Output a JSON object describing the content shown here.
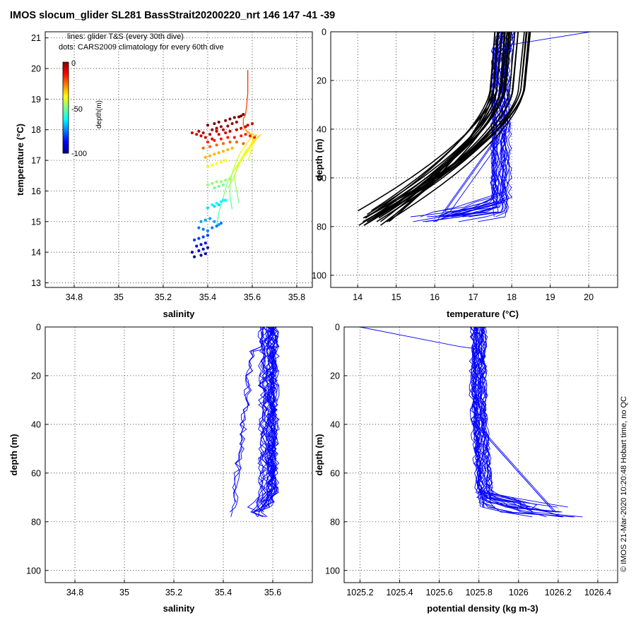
{
  "page": {
    "title": "IMOS slocum_glider SL281 BassStrait20200220_nrt 146  147  -41  -39",
    "side_note": "© IMOS 21-Mar-2020 10:20:48 Hobart time, no QC"
  },
  "chart_data": [
    {
      "id": "ts",
      "type": "scatter",
      "xlabel": "salinity",
      "ylabel": "temperature (°C)",
      "xlim": [
        34.67,
        35.87
      ],
      "ylim": [
        12.85,
        21.2
      ],
      "xticks": [
        "34.8",
        "35",
        "35.2",
        "35.4",
        "35.6",
        "35.8"
      ],
      "yticks": [
        "13",
        "14",
        "15",
        "16",
        "17",
        "18",
        "19",
        "20",
        "21"
      ],
      "grid": true,
      "legend_lines": [
        "lines: glider T&S (every 30th dive)",
        "dots: CARS2009 climatology for every 60th dive"
      ],
      "colorbar": {
        "label": "depth(m)",
        "ticks": [
          "0",
          "-50",
          "-100"
        ],
        "range": [
          -100,
          0
        ]
      },
      "series": [
        {
          "kind": "line",
          "x": [
            35.58,
            35.58,
            35.58,
            35.575,
            35.57,
            35.56,
            35.56,
            35.57,
            35.58,
            35.6,
            35.62
          ],
          "y": [
            19.95,
            19.6,
            19.2,
            18.8,
            18.5,
            18.35,
            18.15,
            18.0,
            17.9,
            17.85,
            17.8
          ],
          "depth": [
            0,
            2,
            4,
            6,
            8,
            10,
            12,
            16,
            20,
            24,
            28
          ]
        },
        {
          "kind": "line",
          "x": [
            35.6,
            35.59,
            35.57,
            35.55,
            35.53,
            35.51,
            35.5,
            35.5,
            35.51
          ],
          "y": [
            17.9,
            17.7,
            17.5,
            17.3,
            17.0,
            16.6,
            16.2,
            15.8,
            15.4
          ],
          "depth": [
            30,
            34,
            38,
            42,
            46,
            52,
            58,
            64,
            70
          ]
        },
        {
          "kind": "line",
          "x": [
            35.62,
            35.6,
            35.58,
            35.55,
            35.52,
            35.49,
            35.47,
            35.45,
            35.44
          ],
          "y": [
            17.85,
            17.6,
            17.35,
            17.05,
            16.7,
            16.3,
            15.8,
            15.3,
            14.85
          ],
          "depth": [
            30,
            35,
            40,
            45,
            50,
            56,
            62,
            68,
            74
          ]
        },
        {
          "kind": "line",
          "x": [
            35.63,
            35.6,
            35.57,
            35.55,
            35.53,
            35.52,
            35.53,
            35.54
          ],
          "y": [
            17.8,
            17.55,
            17.3,
            17.05,
            16.75,
            16.4,
            16.0,
            15.6
          ],
          "depth": [
            30,
            34,
            38,
            42,
            46,
            52,
            58,
            64
          ]
        },
        {
          "kind": "line",
          "x": [
            35.61,
            35.59,
            35.56,
            35.54,
            35.52,
            35.5,
            35.49
          ],
          "y": [
            17.75,
            17.45,
            17.15,
            16.85,
            16.5,
            16.2,
            16.1
          ],
          "depth": [
            32,
            36,
            40,
            44,
            50,
            56,
            60
          ]
        },
        {
          "kind": "line",
          "x": [
            35.56,
            35.57,
            35.59,
            35.6,
            35.6,
            35.6,
            35.59,
            35.58
          ],
          "y": [
            18.1,
            18.0,
            17.9,
            17.75,
            17.6,
            17.4,
            17.2,
            17.0
          ],
          "depth": [
            20,
            24,
            28,
            32,
            36,
            40,
            44,
            48
          ]
        },
        {
          "kind": "line",
          "x": [
            35.64,
            35.62,
            35.6,
            35.58,
            35.56,
            35.55
          ],
          "y": [
            17.85,
            17.7,
            17.5,
            17.3,
            17.1,
            16.95
          ],
          "depth": [
            30,
            34,
            38,
            42,
            46,
            50
          ]
        },
        {
          "kind": "dots",
          "x": [
            35.4,
            35.43,
            35.45,
            35.48,
            35.5,
            35.52,
            35.54,
            35.55,
            35.56,
            35.42,
            35.44,
            35.46,
            35.49,
            35.51,
            35.53,
            35.36,
            35.38,
            35.41,
            35.44,
            35.47,
            35.33,
            35.35,
            35.37,
            35.39,
            35.42,
            35.45,
            35.48,
            35.5,
            35.53,
            35.55,
            35.57,
            35.58,
            35.6
          ],
          "y": [
            18.15,
            18.2,
            18.25,
            18.3,
            18.35,
            18.4,
            18.42,
            18.45,
            18.5,
            18.0,
            18.05,
            18.1,
            18.12,
            18.2,
            18.25,
            17.95,
            17.9,
            17.85,
            17.95,
            18.0,
            17.9,
            17.85,
            17.8,
            17.75,
            17.7,
            17.85,
            17.9,
            17.95,
            18.0,
            18.05,
            18.1,
            18.15,
            18.2
          ],
          "depth": [
            0,
            0,
            0,
            0,
            0,
            0,
            0,
            0,
            0,
            -3,
            -3,
            -3,
            -3,
            -3,
            -3,
            -6,
            -6,
            -6,
            -6,
            -6,
            -8,
            -8,
            -8,
            -8,
            -8,
            -8,
            -8,
            -8,
            -8,
            -8,
            -8,
            -8,
            -8
          ]
        },
        {
          "kind": "dots",
          "x": [
            35.4,
            35.43,
            35.46,
            35.49,
            35.52,
            35.55,
            35.57,
            35.59,
            35.61,
            35.38,
            35.41,
            35.44,
            35.47,
            35.5,
            35.53,
            35.56
          ],
          "y": [
            17.6,
            17.65,
            17.7,
            17.75,
            17.75,
            17.8,
            17.85,
            17.8,
            17.75,
            17.4,
            17.45,
            17.5,
            17.55,
            17.6,
            17.6,
            17.55
          ],
          "depth": [
            -15,
            -15,
            -15,
            -15,
            -15,
            -15,
            -15,
            -15,
            -15,
            -22,
            -22,
            -22,
            -22,
            -22,
            -22,
            -22
          ]
        },
        {
          "kind": "dots",
          "x": [
            35.39,
            35.41,
            35.43,
            35.45,
            35.47,
            35.49,
            35.51,
            35.4,
            35.42,
            35.44,
            35.46,
            35.48
          ],
          "y": [
            17.1,
            17.15,
            17.2,
            17.25,
            17.3,
            17.35,
            17.4,
            16.8,
            16.85,
            16.9,
            16.95,
            17.0
          ],
          "depth": [
            -30,
            -30,
            -30,
            -30,
            -30,
            -30,
            -30,
            -38,
            -38,
            -38,
            -38,
            -38
          ]
        },
        {
          "kind": "dots",
          "x": [
            35.4,
            35.42,
            35.44,
            35.46,
            35.48,
            35.5,
            35.43,
            35.45,
            35.47
          ],
          "y": [
            16.2,
            16.25,
            16.3,
            16.3,
            16.35,
            16.4,
            16.1,
            16.15,
            16.2
          ],
          "depth": [
            -48,
            -48,
            -48,
            -48,
            -48,
            -48,
            -52,
            -52,
            -52
          ]
        },
        {
          "kind": "dots",
          "x": [
            35.42,
            35.44,
            35.46,
            35.47,
            35.48,
            35.4,
            35.43,
            35.45
          ],
          "y": [
            15.55,
            15.6,
            15.65,
            15.7,
            15.7,
            15.45,
            15.5,
            15.55
          ],
          "depth": [
            -62,
            -62,
            -62,
            -62,
            -62,
            -66,
            -66,
            -66
          ]
        },
        {
          "kind": "dots",
          "x": [
            35.37,
            35.39,
            35.41,
            35.43,
            35.45,
            35.36,
            35.38,
            35.4,
            35.42,
            35.44,
            35.46
          ],
          "y": [
            15.0,
            15.05,
            15.1,
            15.0,
            14.9,
            14.8,
            14.75,
            14.7,
            14.8,
            14.85,
            14.95
          ],
          "depth": [
            -72,
            -72,
            -72,
            -72,
            -72,
            -76,
            -76,
            -76,
            -76,
            -76,
            -76
          ]
        },
        {
          "kind": "dots",
          "x": [
            35.34,
            35.36,
            35.38,
            35.4,
            35.35,
            35.37,
            35.39,
            35.33,
            35.36,
            35.38,
            35.4,
            35.34,
            35.37,
            35.39
          ],
          "y": [
            14.4,
            14.45,
            14.5,
            14.55,
            14.2,
            14.25,
            14.3,
            14.0,
            14.05,
            14.1,
            14.15,
            13.85,
            13.9,
            13.95
          ],
          "depth": [
            -82,
            -82,
            -82,
            -82,
            -88,
            -88,
            -88,
            -94,
            -94,
            -94,
            -94,
            -98,
            -98,
            -98
          ]
        }
      ]
    },
    {
      "id": "temp",
      "type": "line",
      "xlabel": "temperature (°C)",
      "ylabel": "depth (m)",
      "xlim": [
        13.3,
        20.75
      ],
      "ylim": [
        105,
        0
      ],
      "xticks": [
        "14",
        "15",
        "16",
        "17",
        "18",
        "19",
        "20"
      ],
      "yticks": [
        "0",
        "20",
        "40",
        "60",
        "80",
        "100"
      ],
      "grid": true,
      "series": [
        {
          "color": "#000000",
          "kind": "climatology",
          "offset": -0.15,
          "surface": 17.8,
          "deep": 13.9,
          "count": 24
        },
        {
          "color": "#0000ff",
          "kind": "glider",
          "surface": 17.6,
          "count": 30
        }
      ]
    },
    {
      "id": "sal",
      "type": "line",
      "xlabel": "salinity",
      "ylabel": "depth (m)",
      "xlim": [
        34.68,
        35.76
      ],
      "ylim": [
        105,
        0
      ],
      "xticks": [
        "34.8",
        "35",
        "35.2",
        "35.4",
        "35.6"
      ],
      "yticks": [
        "0",
        "20",
        "40",
        "60",
        "80",
        "100"
      ],
      "grid": true,
      "series": [
        {
          "color": "#0000ff",
          "kind": "glider",
          "center": 35.58,
          "count": 30
        }
      ]
    },
    {
      "id": "dens",
      "type": "line",
      "xlabel": "potential density (kg m-3)",
      "ylabel": "depth (m)",
      "xlim": [
        1025.12,
        1026.5
      ],
      "ylim": [
        105,
        0
      ],
      "xticks": [
        "1025.2",
        "1025.4",
        "1025.6",
        "1025.8",
        "1026",
        "1026.2",
        "1026.4"
      ],
      "yticks": [
        "0",
        "20",
        "40",
        "60",
        "80",
        "100"
      ],
      "grid": true,
      "series": [
        {
          "color": "#0000ff",
          "kind": "glider",
          "center": 1025.8,
          "count": 30
        }
      ]
    }
  ]
}
